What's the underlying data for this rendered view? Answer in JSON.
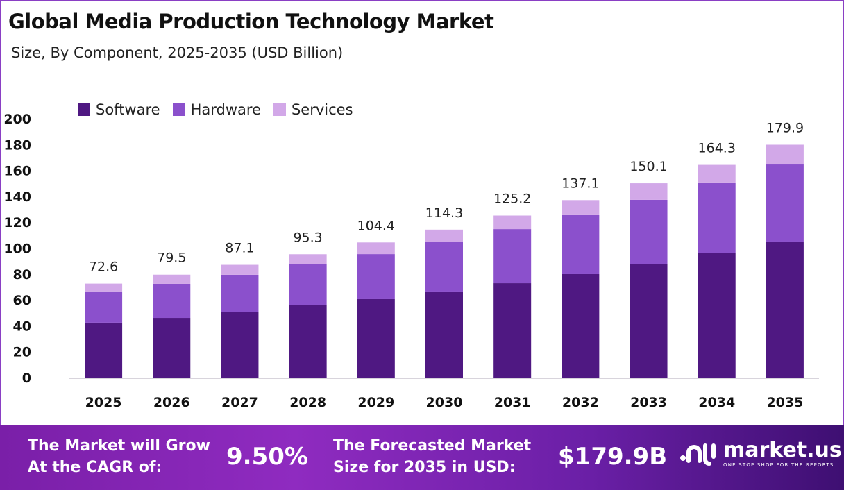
{
  "title": "Global Media Production Technology Market",
  "subtitle": "Size, By Component, 2025-2035 (USD Billion)",
  "colors": {
    "Software": "#4f1882",
    "Hardware": "#8b50cc",
    "Services": "#d2a8e8",
    "axis": "#d8d4dc"
  },
  "chart_data": {
    "type": "bar",
    "stacked": true,
    "categories": [
      "2025",
      "2026",
      "2027",
      "2028",
      "2029",
      "2030",
      "2031",
      "2032",
      "2033",
      "2034",
      "2035"
    ],
    "series": [
      {
        "name": "Software",
        "values": [
          42.4,
          46.1,
          50.9,
          55.8,
          60.6,
          66.5,
          72.9,
          79.9,
          87.4,
          96.0,
          105.1
        ]
      },
      {
        "name": "Hardware",
        "values": [
          24.1,
          26.3,
          28.5,
          31.6,
          34.8,
          38.1,
          41.8,
          45.6,
          49.9,
          54.7,
          59.5
        ]
      },
      {
        "name": "Services",
        "values": [
          6.1,
          7.1,
          7.7,
          7.9,
          9.0,
          9.7,
          10.5,
          11.6,
          12.8,
          13.6,
          15.3
        ]
      }
    ],
    "totals": [
      "72.6",
      "79.5",
      "87.1",
      "95.3",
      "104.4",
      "114.3",
      "125.2",
      "137.1",
      "150.1",
      "164.3",
      "179.9"
    ],
    "ylim": [
      0,
      200
    ],
    "yticks": [
      "0",
      "20",
      "40",
      "60",
      "80",
      "100",
      "120",
      "140",
      "160",
      "180",
      "200"
    ],
    "legend_position": "top-left",
    "grid": false
  },
  "banner": {
    "cagr_label_1": "The Market will Grow",
    "cagr_label_2": "At the CAGR of:",
    "cagr_value": "9.50%",
    "forecast_label_1": "The Forecasted Market",
    "forecast_label_2": "Size for 2035 in USD:",
    "forecast_value": "$179.9B"
  },
  "logo": {
    "name": "market.us",
    "tagline": "ONE STOP SHOP FOR THE REPORTS"
  }
}
